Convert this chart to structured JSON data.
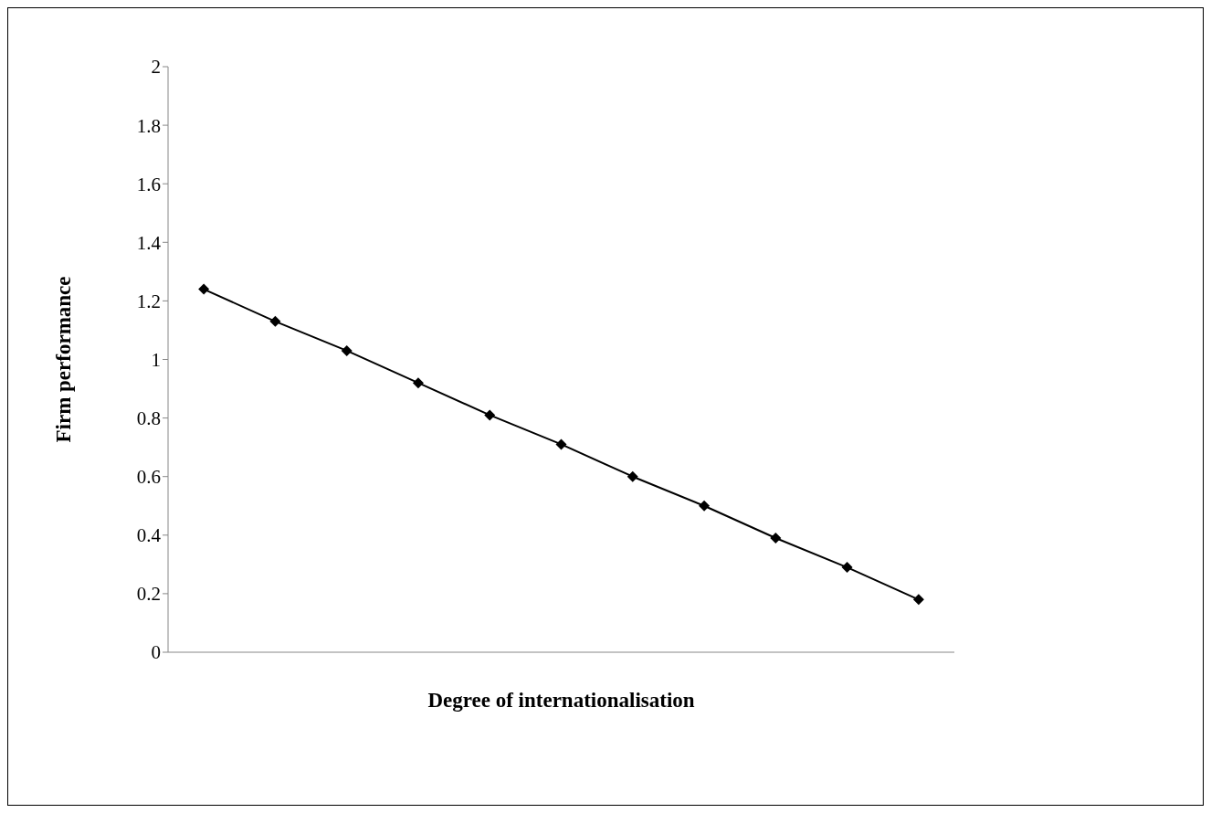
{
  "chart_data": {
    "type": "line",
    "xlabel": "Degree of internationalisation",
    "ylabel": "Firm performance",
    "categories": [
      null,
      null,
      null,
      null,
      null,
      null,
      null,
      null,
      null,
      null,
      null
    ],
    "series": [
      {
        "color": "#000000",
        "values": [
          1.24,
          1.13,
          1.03,
          0.92,
          0.81,
          0.71,
          0.6,
          0.5,
          0.39,
          0.29,
          0.18
        ]
      }
    ],
    "ylim": [
      0,
      2
    ],
    "yticks": [
      0,
      0.2,
      0.4,
      0.6,
      0.8,
      1,
      1.2,
      1.4,
      1.6,
      1.8,
      2
    ],
    "marker": "diamond",
    "line_style": "solid",
    "grid": false,
    "legend": false
  }
}
